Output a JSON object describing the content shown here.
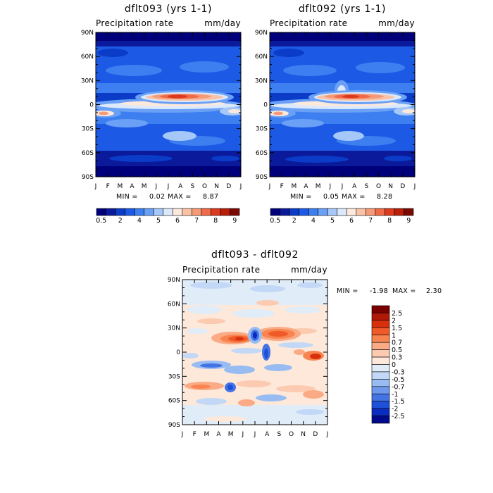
{
  "chart_data": [
    {
      "type": "heatmap",
      "title": "dflt093 (yrs 1-1)",
      "subtitle_left": "Precipitation rate",
      "subtitle_right": "mm/day",
      "x_ticklabels": [
        "J",
        "F",
        "M",
        "A",
        "M",
        "J",
        "J",
        "A",
        "S",
        "O",
        "N",
        "D",
        "J"
      ],
      "y_ticklabels": [
        "90N",
        "60N",
        "30N",
        "0",
        "30S",
        "60S",
        "90S"
      ],
      "y_values": [
        90,
        60,
        30,
        0,
        -30,
        -60,
        -90
      ],
      "stats": {
        "min_label": "MIN =",
        "min": "0.02",
        "max_label": "MAX =",
        "max": "8.87"
      },
      "colorbar": {
        "orientation": "horizontal",
        "colors": [
          "#00007a",
          "#0a1a9a",
          "#0b3cc8",
          "#1c5ae6",
          "#3d7ef0",
          "#6aa0f5",
          "#a6c8f8",
          "#dbe9fb",
          "#fde8dc",
          "#f9c2a6",
          "#f59a78",
          "#ee6a48",
          "#dc3a1e",
          "#b81e08",
          "#7a0800"
        ],
        "tick_labels": [
          "0.5",
          "2",
          "4",
          "5",
          "6",
          "7",
          "8",
          "9"
        ]
      }
    },
    {
      "type": "heatmap",
      "title": "dflt092 (yrs 1-1)",
      "subtitle_left": "Precipitation rate",
      "subtitle_right": "mm/day",
      "x_ticklabels": [
        "J",
        "F",
        "M",
        "A",
        "M",
        "J",
        "J",
        "A",
        "S",
        "O",
        "N",
        "D",
        "J"
      ],
      "y_ticklabels": [
        "90N",
        "60N",
        "30N",
        "0",
        "30S",
        "60S",
        "90S"
      ],
      "y_values": [
        90,
        60,
        30,
        0,
        -30,
        -60,
        -90
      ],
      "stats": {
        "min_label": "MIN =",
        "min": "0.05",
        "max_label": "MAX =",
        "max": "8.28"
      },
      "colorbar": {
        "orientation": "horizontal",
        "colors": [
          "#00007a",
          "#0a1a9a",
          "#0b3cc8",
          "#1c5ae6",
          "#3d7ef0",
          "#6aa0f5",
          "#a6c8f8",
          "#dbe9fb",
          "#fde8dc",
          "#f9c2a6",
          "#f59a78",
          "#ee6a48",
          "#dc3a1e",
          "#b81e08",
          "#7a0800"
        ],
        "tick_labels": [
          "0.5",
          "2",
          "4",
          "5",
          "6",
          "7",
          "8",
          "9"
        ]
      }
    },
    {
      "type": "heatmap",
      "title": "dflt093 - dflt092",
      "subtitle_left": "Precipitation rate",
      "subtitle_right": "mm/day",
      "x_ticklabels": [
        "J",
        "F",
        "M",
        "A",
        "M",
        "J",
        "J",
        "A",
        "S",
        "O",
        "N",
        "D",
        "J"
      ],
      "y_ticklabels": [
        "90N",
        "60N",
        "30N",
        "0",
        "30S",
        "60S",
        "90S"
      ],
      "y_values": [
        90,
        60,
        30,
        0,
        -30,
        -60,
        -90
      ],
      "stats": {
        "min_label": "MIN =",
        "min": "-1.98",
        "max_label": "MAX =",
        "max": "2.30"
      },
      "colorbar": {
        "orientation": "vertical",
        "colors": [
          "#7a0000",
          "#b01808",
          "#d8300c",
          "#f05a28",
          "#f88450",
          "#faaa84",
          "#fccab0",
          "#fde8da",
          "#e0ecf8",
          "#c2d8f6",
          "#98bcf2",
          "#6e98ec",
          "#4474e4",
          "#1e50da",
          "#0a2cc0",
          "#000a8a"
        ],
        "tick_labels": [
          "2.5",
          "2",
          "1.5",
          "1",
          "0.7",
          "0.5",
          "0.3",
          "0",
          "-0.3",
          "-0.5",
          "-0.7",
          "-1",
          "-1.5",
          "-2",
          "-2.5"
        ]
      }
    }
  ]
}
